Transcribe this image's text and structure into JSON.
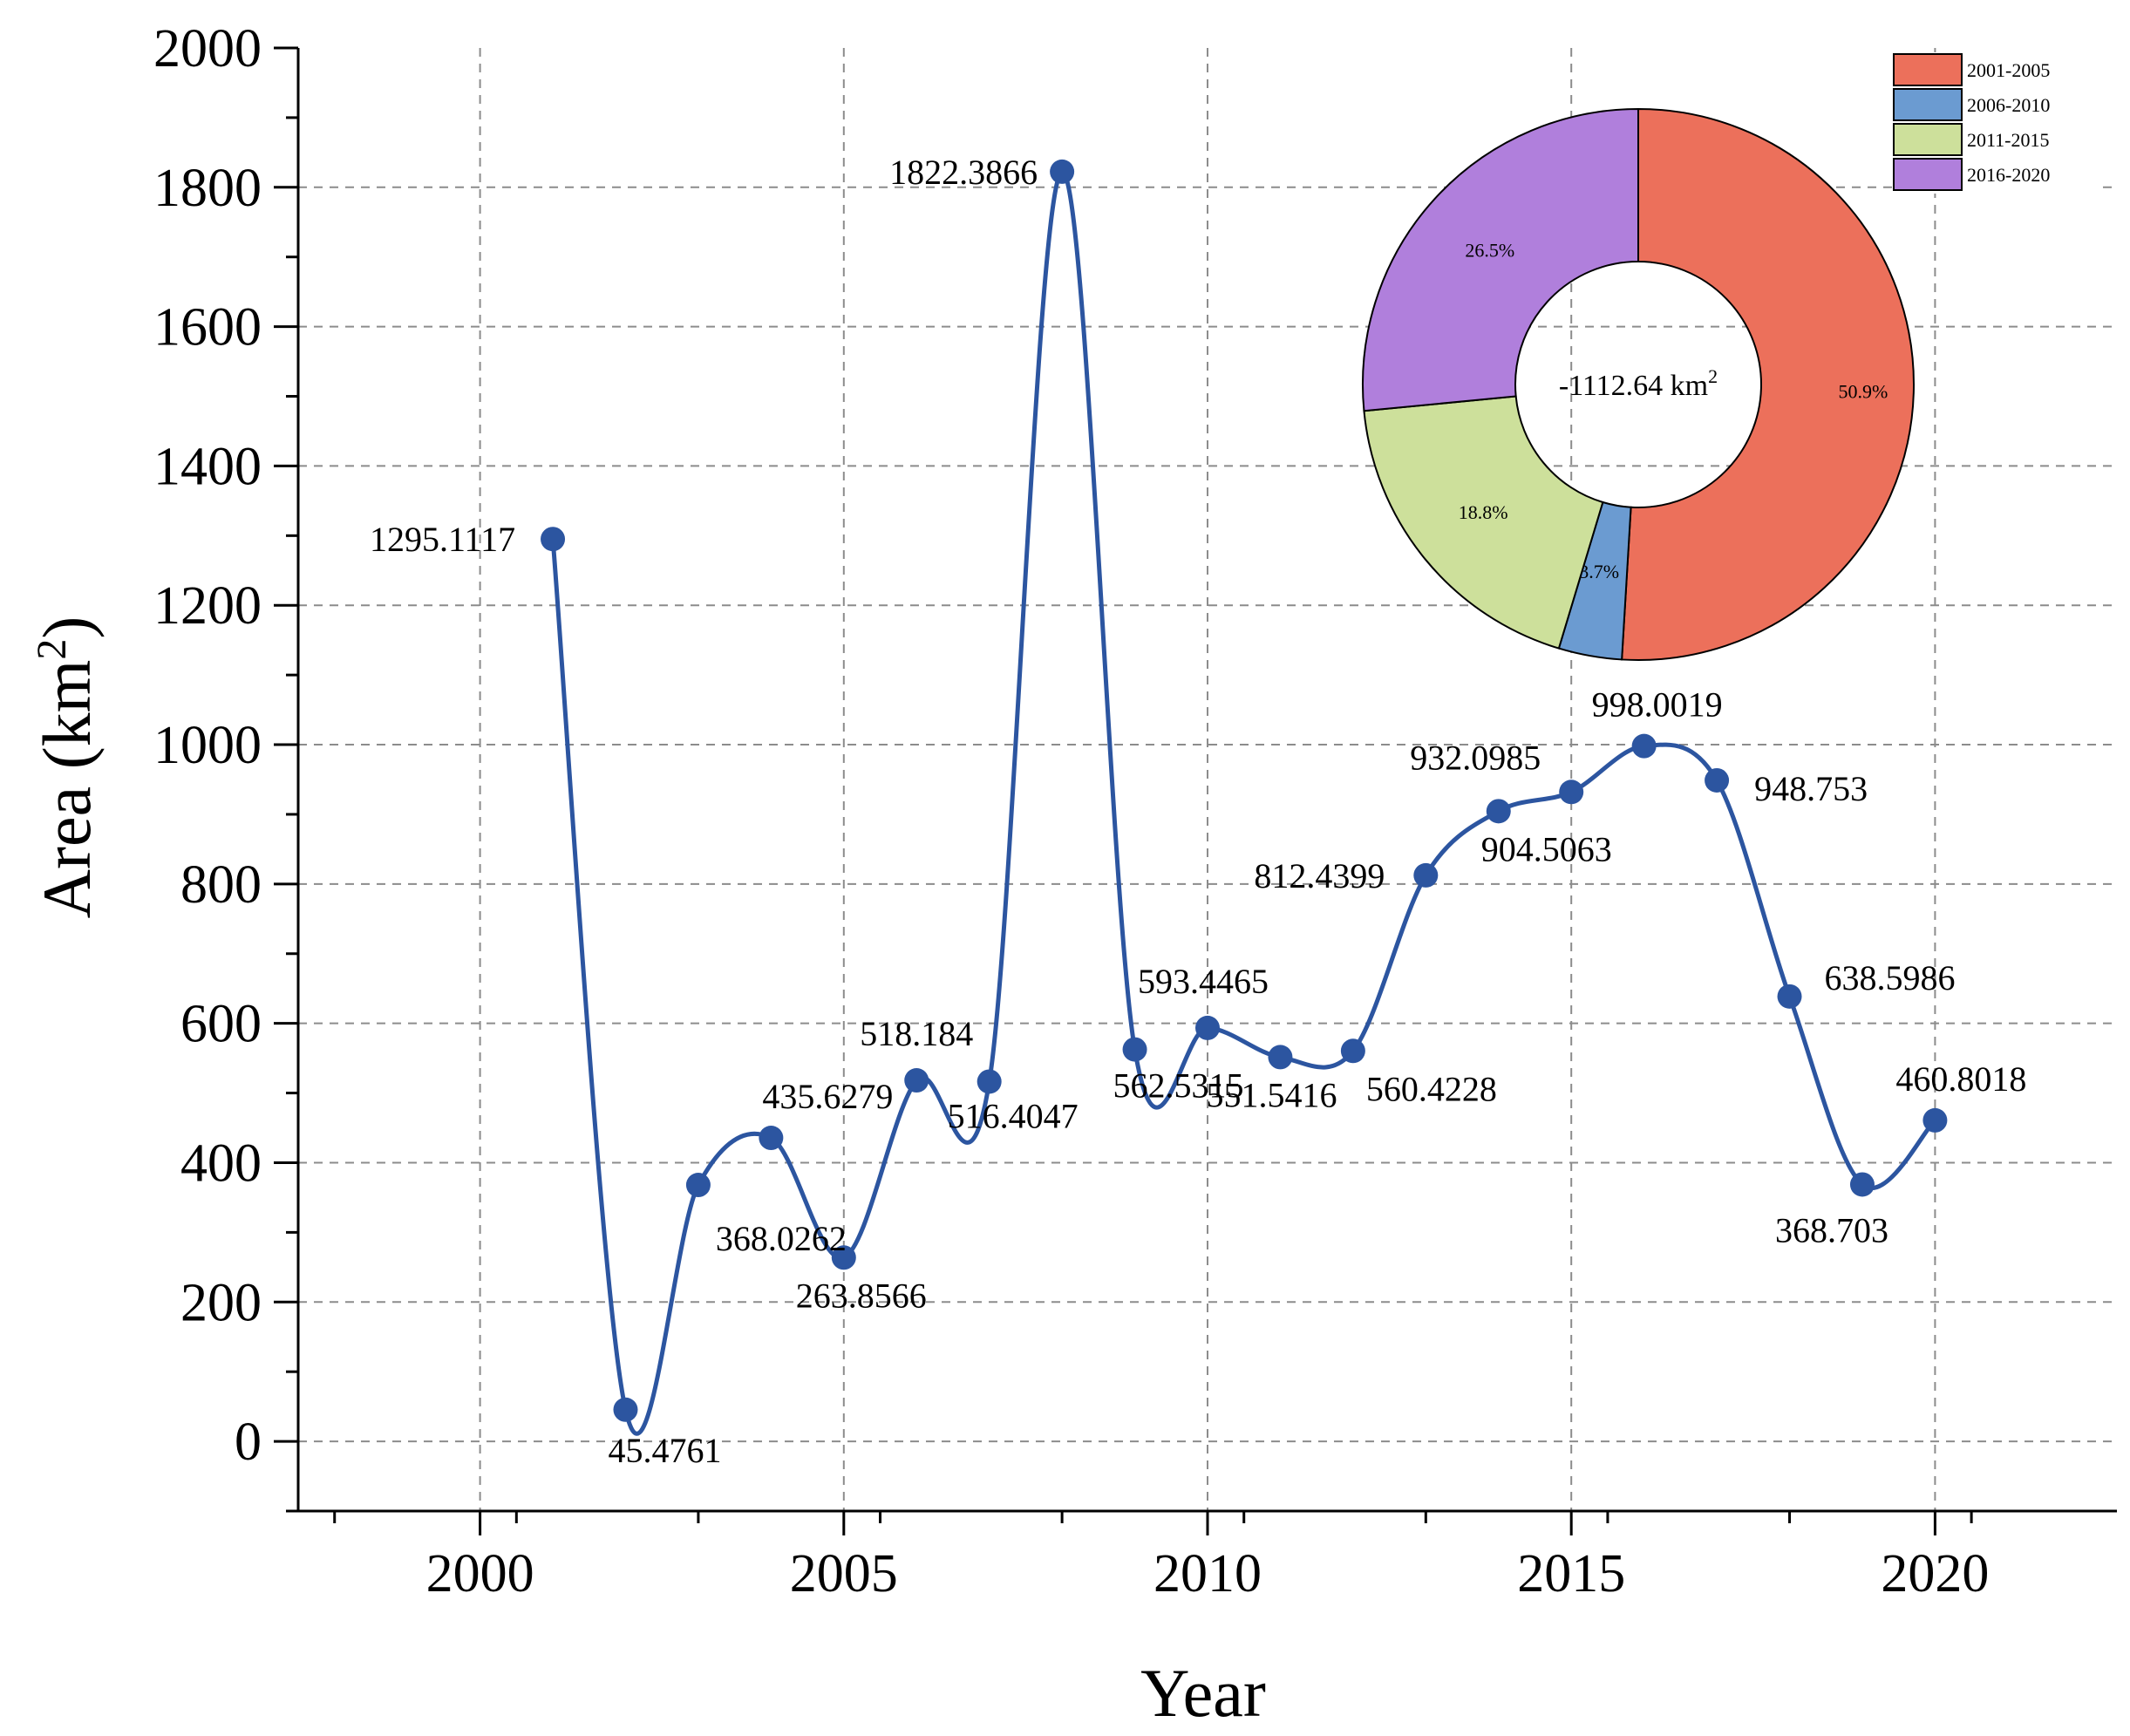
{
  "chart_data": [
    {
      "type": "line",
      "title": "",
      "xlabel": "Year",
      "ylabel": "Area (km",
      "ylabel_superscript": "2",
      "ylabel_close": ")",
      "xlim": [
        1997.5,
        2022.5
      ],
      "ylim": [
        -100,
        2000
      ],
      "x_ticks": [
        2000,
        2005,
        2010,
        2015,
        2020
      ],
      "y_ticks": [
        0,
        200,
        400,
        600,
        800,
        1000,
        1200,
        1400,
        1600,
        1800,
        2000
      ],
      "grid": true,
      "line_color": "#2c55a0",
      "series": [
        {
          "name": "Area",
          "x": [
            2001,
            2002,
            2003,
            2004,
            2005,
            2006,
            2007,
            2008,
            2009,
            2010,
            2011,
            2012,
            2013,
            2014,
            2015,
            2016,
            2017,
            2018,
            2019,
            2020
          ],
          "values": [
            1295.1117,
            45.4761,
            368.0262,
            435.6279,
            263.8566,
            518.184,
            516.4047,
            1822.3866,
            562.5315,
            593.4465,
            551.5416,
            560.4228,
            812.4399,
            904.5063,
            932.0985,
            998.0019,
            948.753,
            638.5986,
            368.703,
            460.8018
          ],
          "labels": [
            "1295.1117",
            "45.4761",
            "368.0262",
            "435.6279",
            "263.8566",
            "518.184",
            "516.4047",
            "1822.3866",
            "562.5315",
            "593.4465",
            "551.5416",
            "560.4228",
            "812.4399",
            "904.5063",
            "932.0985",
            "998.0019",
            "948.753",
            "638.5986",
            "368.703",
            "460.8018"
          ]
        }
      ]
    },
    {
      "type": "pie",
      "donut": true,
      "center_label": "-1112.64 km",
      "center_label_superscript": "2",
      "categories": [
        "2001-2005",
        "2006-2010",
        "2011-2015",
        "2016-2020"
      ],
      "values": [
        50.9,
        3.7,
        18.8,
        26.5
      ],
      "labels": [
        "50.9%",
        "3.7%",
        "18.8%",
        "26.5%"
      ],
      "colors": [
        "#ec705b",
        "#6b9bd1",
        "#cde09b",
        "#b07fdc"
      ],
      "legend_position": "top-right"
    }
  ]
}
